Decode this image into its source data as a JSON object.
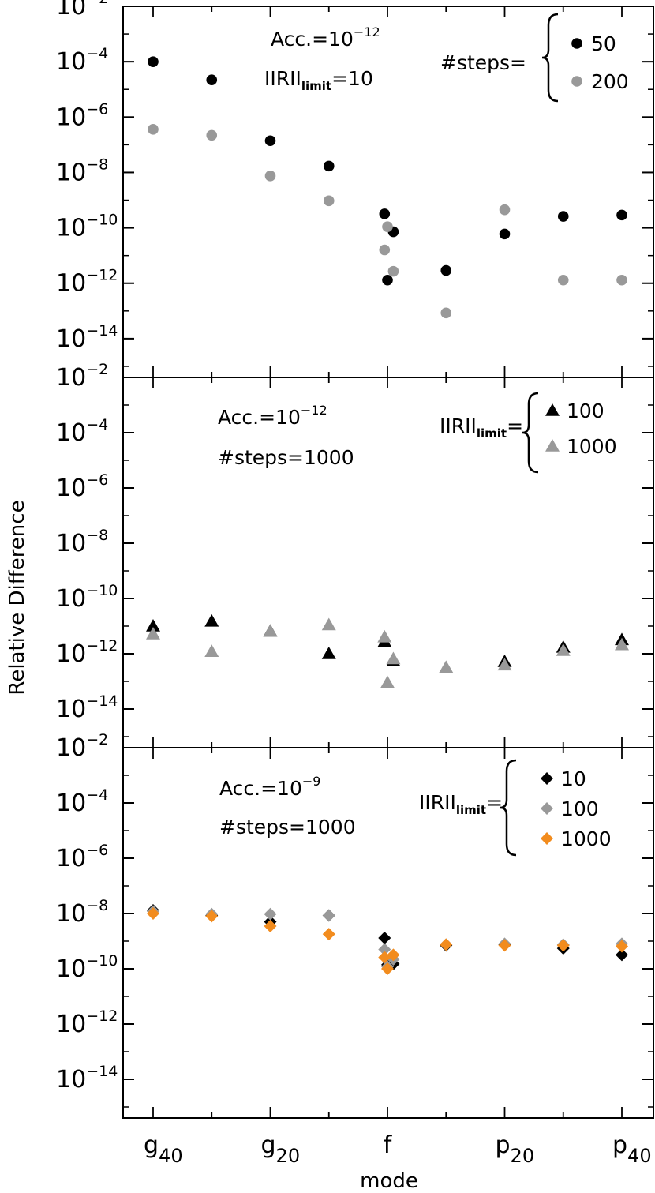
{
  "chart_data": {
    "type": "scatter",
    "xlabel": "mode",
    "ylabel": "Relative Difference",
    "yscale": "log",
    "grid": false,
    "x_ticks": [
      {
        "x": 0,
        "base": "g",
        "sub": "40"
      },
      {
        "x": 2,
        "base": "g",
        "sub": "20"
      },
      {
        "x": 4,
        "base": "f",
        "sub": ""
      },
      {
        "x": 6,
        "base": "p",
        "sub": "20"
      },
      {
        "x": 8,
        "base": "p",
        "sub": "40"
      }
    ],
    "panels": [
      {
        "ylim_exp": [
          -15.4,
          -2
        ],
        "y_tick_exponents": [
          -2,
          -4,
          -6,
          -8,
          -10,
          -12,
          -14
        ],
        "annotation": {
          "acc_prefix": "Acc.=",
          "acc_base": "10",
          "acc_exp": "-12",
          "line2_prefix": "IIRII",
          "line2_sub": "limit",
          "line2_suffix": "=10"
        },
        "legend": {
          "label_prefix": "#steps=",
          "label_sub": "",
          "location": "top-right"
        },
        "series": [
          {
            "name": "50",
            "marker": "circle",
            "color": "#000000",
            "points": [
              [
                0,
                0.0001
              ],
              [
                1,
                2.2e-05
              ],
              [
                2,
                1.4e-07
              ],
              [
                3,
                1.7e-08
              ],
              [
                3.95,
                3.2e-10
              ],
              [
                4.0,
                1.3e-12
              ],
              [
                4.1,
                7.2e-11
              ],
              [
                5,
                2.9e-12
              ],
              [
                6,
                6e-11
              ],
              [
                7,
                2.6e-10
              ],
              [
                8,
                2.9e-10
              ]
            ]
          },
          {
            "name": "200",
            "marker": "circle",
            "color": "#999999",
            "points": [
              [
                0,
                3.6e-07
              ],
              [
                1,
                2.2e-07
              ],
              [
                2,
                7.5e-09
              ],
              [
                3,
                9.5e-10
              ],
              [
                3.95,
                1.6e-11
              ],
              [
                4.0,
                1.1e-10
              ],
              [
                4.1,
                2.7e-12
              ],
              [
                5,
                8.5e-14
              ],
              [
                6,
                4.5e-10
              ],
              [
                7,
                1.3e-12
              ],
              [
                8,
                1.3e-12
              ]
            ]
          }
        ]
      },
      {
        "ylim_exp": [
          -15.4,
          -2
        ],
        "y_tick_exponents": [
          -2,
          -4,
          -6,
          -8,
          -10,
          -12,
          -14
        ],
        "annotation": {
          "acc_prefix": "Acc.=",
          "acc_base": "10",
          "acc_exp": "-12",
          "line2_prefix": "#steps=1000",
          "line2_sub": "",
          "line2_suffix": ""
        },
        "legend": {
          "label_prefix": "IIRII",
          "label_sub": "limit",
          "label_suffix": "=",
          "location": "top-right"
        },
        "series": [
          {
            "name": "100",
            "marker": "triangle",
            "color": "#000000",
            "points": [
              [
                0,
                1e-11
              ],
              [
                1,
                1.5e-11
              ],
              [
                2,
                6.5e-12
              ],
              [
                3,
                1e-12
              ],
              [
                3.95,
                2.7e-12
              ],
              [
                4.1,
                5.5e-13
              ],
              [
                5,
                3e-13
              ],
              [
                6,
                5.2e-13
              ],
              [
                7,
                1.7e-12
              ],
              [
                8,
                3.2e-12
              ]
            ]
          },
          {
            "name": "1000",
            "marker": "triangle",
            "color": "#999999",
            "points": [
              [
                0,
                5.2e-12
              ],
              [
                1,
                1.2e-12
              ],
              [
                2,
                6.5e-12
              ],
              [
                3,
                1.1e-11
              ],
              [
                3.95,
                4e-12
              ],
              [
                4.0,
                9e-14
              ],
              [
                4.1,
                6.5e-13
              ],
              [
                5,
                3.2e-13
              ],
              [
                6,
                3.9e-13
              ],
              [
                7,
                1.3e-12
              ],
              [
                8,
                2.1e-12
              ]
            ]
          }
        ]
      },
      {
        "ylim_exp": [
          -15.4,
          -2
        ],
        "y_tick_exponents": [
          -2,
          -4,
          -6,
          -8,
          -10,
          -12,
          -14
        ],
        "annotation": {
          "acc_prefix": "Acc.=",
          "acc_base": "10",
          "acc_exp": "-9",
          "line2_prefix": "#steps=1000",
          "line2_sub": "",
          "line2_suffix": ""
        },
        "legend": {
          "label_prefix": "IIRII",
          "label_sub": "limit",
          "label_suffix": "=",
          "location": "top-right"
        },
        "series": [
          {
            "name": "10",
            "marker": "diamond",
            "color": "#000000",
            "points": [
              [
                0,
                1.3e-08
              ],
              [
                1,
                8.5e-09
              ],
              [
                2,
                5e-09
              ],
              [
                3,
                8.5e-09
              ],
              [
                3.95,
                1.3e-09
              ],
              [
                4.0,
                1.4e-10
              ],
              [
                4.1,
                1.5e-10
              ],
              [
                5,
                7e-10
              ],
              [
                6,
                7.5e-10
              ],
              [
                7,
                5.5e-10
              ],
              [
                8,
                3.2e-10
              ]
            ]
          },
          {
            "name": "100",
            "marker": "diamond",
            "color": "#999999",
            "points": [
              [
                0,
                1.2e-08
              ],
              [
                1,
                9.5e-09
              ],
              [
                2,
                9.5e-09
              ],
              [
                3,
                8.5e-09
              ],
              [
                3.95,
                5e-10
              ],
              [
                4.0,
                1.2e-10
              ],
              [
                4.1,
                2.2e-10
              ],
              [
                5,
                7.5e-10
              ],
              [
                6,
                8e-10
              ],
              [
                7,
                7.5e-10
              ],
              [
                8,
                8e-10
              ]
            ]
          },
          {
            "name": "1000",
            "marker": "diamond",
            "color": "#f28c1e",
            "points": [
              [
                0,
                1e-08
              ],
              [
                1,
                8e-09
              ],
              [
                2,
                3.5e-09
              ],
              [
                3,
                1.8e-09
              ],
              [
                3.95,
                2.6e-10
              ],
              [
                4.0,
                1e-10
              ],
              [
                4.1,
                3.2e-10
              ],
              [
                5,
                7.5e-10
              ],
              [
                6,
                7e-10
              ],
              [
                7,
                7e-10
              ],
              [
                8,
                6.5e-10
              ]
            ]
          }
        ]
      }
    ]
  }
}
